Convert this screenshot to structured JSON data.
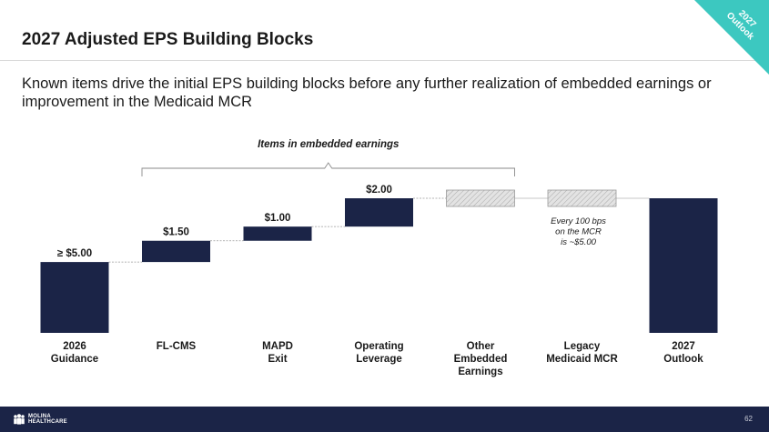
{
  "slide": {
    "title": "2027 Adjusted EPS Building Blocks",
    "subtitle": "Known items drive the initial EPS building blocks before any further realization of embedded earnings or improvement in the Medicaid MCR",
    "corner_tag_line1": "2027",
    "corner_tag_line2": "Outlook",
    "page_number": "62",
    "logo_line1": "MOLINA",
    "logo_line2": "HEALTHCARE",
    "logo_icon": "molina-people-icon"
  },
  "colors": {
    "bar_navy": "#1b2447",
    "placeholder_fill": "#e3e3e3",
    "placeholder_hatch": "#a8a8a8",
    "accent_teal": "#3cc8c0",
    "footer_navy": "#1b2447"
  },
  "chart_data": {
    "type": "bar",
    "subtype": "waterfall",
    "categories": [
      "2026\nGuidance",
      "FL-CMS",
      "MAPD\nExit",
      "Operating\nLeverage",
      "Other\nEmbedded\nEarnings",
      "Legacy\nMedicaid MCR",
      "2027\nOutlook"
    ],
    "bars": [
      {
        "kind": "total",
        "start": 0,
        "end": 5.0,
        "label": "≥ $5.00"
      },
      {
        "kind": "increment",
        "start": 5.0,
        "end": 6.5,
        "label": "$1.50"
      },
      {
        "kind": "increment",
        "start": 6.5,
        "end": 7.5,
        "label": "$1.00"
      },
      {
        "kind": "increment",
        "start": 7.5,
        "end": 9.5,
        "label": "$2.00"
      },
      {
        "kind": "placeholder",
        "start": 9.5,
        "end": 10.0,
        "label": ""
      },
      {
        "kind": "placeholder",
        "start": 9.5,
        "end": 10.0,
        "label": ""
      },
      {
        "kind": "total",
        "start": 0,
        "end": 9.5,
        "label": ""
      }
    ],
    "bracket": {
      "label": "Items in embedded earnings",
      "from_index": 1,
      "to_index": 4
    },
    "annotation": {
      "index": 5,
      "lines": [
        "Every 100 bps",
        "on the MCR",
        "is ~$5.00"
      ]
    },
    "ylim": [
      0,
      10.5
    ],
    "grid": false,
    "xlabel": "",
    "ylabel": ""
  }
}
